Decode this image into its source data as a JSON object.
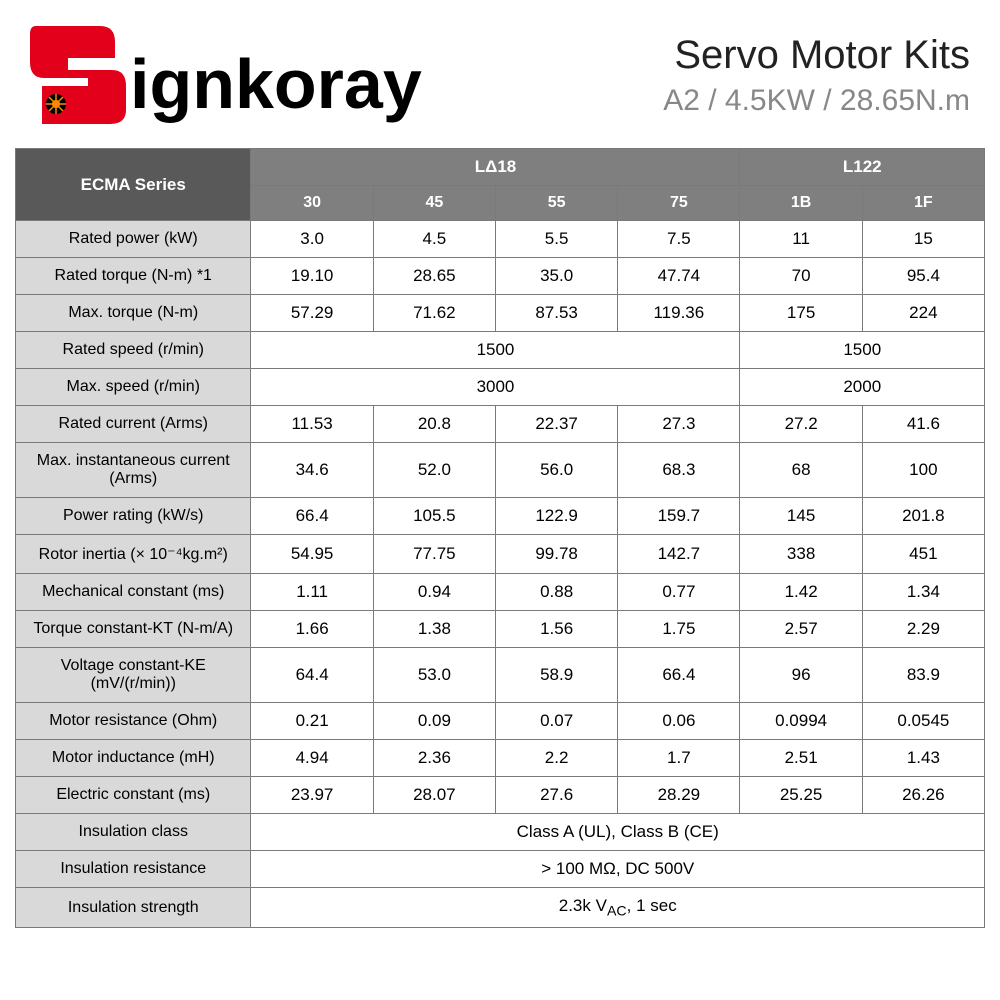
{
  "brand": "Signkoray",
  "title": "Servo Motor Kits",
  "subtitle": "A2 / 4.5KW / 28.65N.m",
  "logo_colors": {
    "red": "#e2001a",
    "black": "#000000",
    "orange_dot": "#ff8c00"
  },
  "table": {
    "series_label": "ECMA Series",
    "header_bg_dark": "#595959",
    "header_bg": "#7f7f7f",
    "header_fg": "#ffffff",
    "label_bg": "#d9d9d9",
    "cell_bg": "#ffffff",
    "border": "#7a7a7a",
    "groups": [
      {
        "name": "LΔ18",
        "cols": [
          "30",
          "45",
          "55",
          "75"
        ]
      },
      {
        "name": "L122",
        "cols": [
          "1B",
          "1F"
        ]
      }
    ],
    "rows": [
      {
        "label": "Rated power (kW)",
        "cells": [
          "3.0",
          "4.5",
          "5.5",
          "7.5",
          "11",
          "15"
        ]
      },
      {
        "label": "Rated torque (N-m) *1",
        "cells": [
          "19.10",
          "28.65",
          "35.0",
          "47.74",
          "70",
          "95.4"
        ]
      },
      {
        "label": "Max. torque (N-m)",
        "cells": [
          "57.29",
          "71.62",
          "87.53",
          "119.36",
          "175",
          "224"
        ]
      },
      {
        "label": "Rated speed (r/min)",
        "spans": [
          {
            "text": "1500",
            "colspan": 4
          },
          {
            "text": "1500",
            "colspan": 2
          }
        ]
      },
      {
        "label": "Max. speed (r/min)",
        "spans": [
          {
            "text": "3000",
            "colspan": 4
          },
          {
            "text": "2000",
            "colspan": 2
          }
        ]
      },
      {
        "label": "Rated current (Arms)",
        "cells": [
          "11.53",
          "20.8",
          "22.37",
          "27.3",
          "27.2",
          "41.6"
        ]
      },
      {
        "label": "Max. instantaneous current (Arms)",
        "cells": [
          "34.6",
          "52.0",
          "56.0",
          "68.3",
          "68",
          "100"
        ]
      },
      {
        "label": "Power rating (kW/s)",
        "cells": [
          "66.4",
          "105.5",
          "122.9",
          "159.7",
          "145",
          "201.8"
        ]
      },
      {
        "label": "Rotor inertia (× 10⁻⁴kg.m²)",
        "cells": [
          "54.95",
          "77.75",
          "99.78",
          "142.7",
          "338",
          "451"
        ]
      },
      {
        "label": "Mechanical constant (ms)",
        "cells": [
          "1.11",
          "0.94",
          "0.88",
          "0.77",
          "1.42",
          "1.34"
        ]
      },
      {
        "label": "Torque constant-KT (N-m/A)",
        "cells": [
          "1.66",
          "1.38",
          "1.56",
          "1.75",
          "2.57",
          "2.29"
        ]
      },
      {
        "label": "Voltage constant-KE (mV/(r/min))",
        "cells": [
          "64.4",
          "53.0",
          "58.9",
          "66.4",
          "96",
          "83.9"
        ]
      },
      {
        "label": "Motor resistance (Ohm)",
        "cells": [
          "0.21",
          "0.09",
          "0.07",
          "0.06",
          "0.0994",
          "0.0545"
        ]
      },
      {
        "label": "Motor inductance (mH)",
        "cells": [
          "4.94",
          "2.36",
          "2.2",
          "1.7",
          "2.51",
          "1.43"
        ]
      },
      {
        "label": "Electric constant (ms)",
        "cells": [
          "23.97",
          "28.07",
          "27.6",
          "28.29",
          "25.25",
          "26.26"
        ]
      },
      {
        "label": "Insulation class",
        "spans": [
          {
            "text": "Class A (UL), Class B (CE)",
            "colspan": 6
          }
        ]
      },
      {
        "label": "Insulation resistance",
        "spans": [
          {
            "text": "> 100 MΩ, DC 500V",
            "colspan": 6
          }
        ]
      },
      {
        "label": "Insulation strength",
        "spans": [
          {
            "html": "2.3k V<sub>AC</sub>, 1 sec",
            "colspan": 6
          }
        ]
      }
    ]
  }
}
